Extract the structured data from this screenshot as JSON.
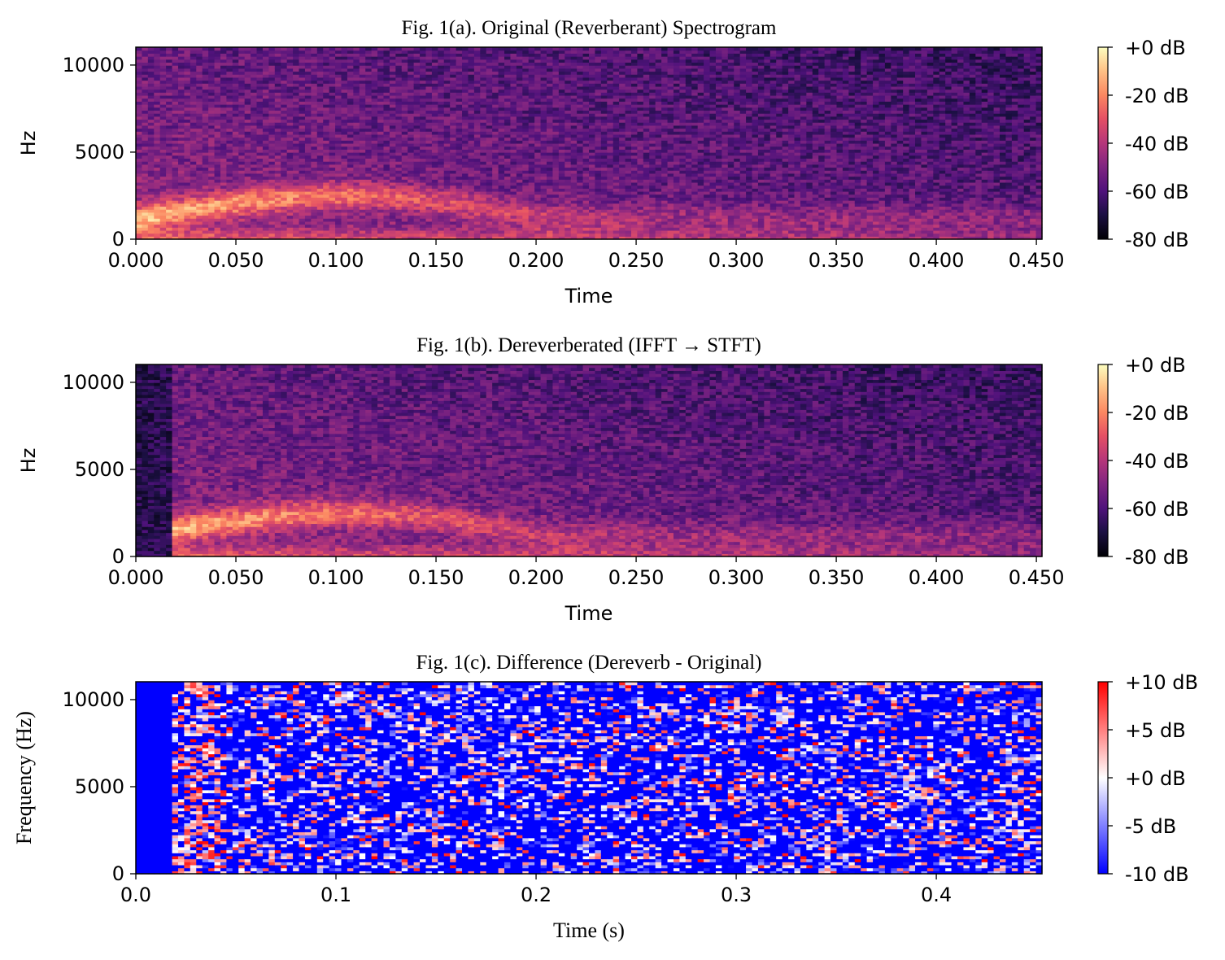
{
  "chart_data": [
    {
      "type": "heatmap",
      "id": "a",
      "title": "Fig. 1(a). Original (Reverberant) Spectrogram",
      "xlabel": "Time",
      "ylabel": "Hz",
      "xlim": [
        0,
        0.4528
      ],
      "ylim": [
        0,
        11025
      ],
      "x_ticks": [
        0,
        0.05,
        0.1,
        0.15,
        0.2,
        0.25,
        0.3,
        0.35,
        0.4,
        0.45
      ],
      "x_tick_labels": [
        "0.000",
        "0.050",
        "0.100",
        "0.150",
        "0.200",
        "0.250",
        "0.300",
        "0.350",
        "0.400",
        "0.450"
      ],
      "y_ticks": [
        0,
        5000,
        10000
      ],
      "y_tick_labels": [
        "0",
        "5000",
        "10000"
      ],
      "colormap": "magma",
      "colorbar": {
        "range": [
          -80,
          0
        ],
        "ticks": [
          0,
          -20,
          -40,
          -60,
          -80
        ],
        "labels": [
          "+0 dB",
          "-20 dB",
          "-40 dB",
          "-60 dB",
          "-80 dB"
        ]
      },
      "grid": false
    },
    {
      "type": "heatmap",
      "id": "b",
      "title": "Fig. 1(b). Dereverberated (IFFT → STFT)",
      "xlabel": "Time",
      "ylabel": "Hz",
      "xlim": [
        0,
        0.4528
      ],
      "ylim": [
        0,
        11025
      ],
      "x_ticks": [
        0,
        0.05,
        0.1,
        0.15,
        0.2,
        0.25,
        0.3,
        0.35,
        0.4,
        0.45
      ],
      "x_tick_labels": [
        "0.000",
        "0.050",
        "0.100",
        "0.150",
        "0.200",
        "0.250",
        "0.300",
        "0.350",
        "0.400",
        "0.450"
      ],
      "y_ticks": [
        0,
        5000,
        10000
      ],
      "y_tick_labels": [
        "0",
        "5000",
        "10000"
      ],
      "colormap": "magma",
      "colorbar": {
        "range": [
          -80,
          0
        ],
        "ticks": [
          0,
          -20,
          -40,
          -60,
          -80
        ],
        "labels": [
          "+0 dB",
          "-20 dB",
          "-40 dB",
          "-60 dB",
          "-80 dB"
        ]
      },
      "grid": false
    },
    {
      "type": "heatmap",
      "id": "c",
      "title": "Fig. 1(c). Difference (Dereverb - Original)",
      "xlabel": "Time (s)",
      "ylabel": "Frequency (Hz)",
      "xlim": [
        0,
        0.4528
      ],
      "ylim": [
        0,
        11025
      ],
      "x_ticks": [
        0,
        0.1,
        0.2,
        0.3,
        0.4
      ],
      "x_tick_labels": [
        "0.0",
        "0.1",
        "0.2",
        "0.3",
        "0.4"
      ],
      "y_ticks": [
        0,
        5000,
        10000
      ],
      "y_tick_labels": [
        "0",
        "5000",
        "10000"
      ],
      "colormap": "bwr",
      "colorbar": {
        "range": [
          -10,
          10
        ],
        "ticks": [
          10,
          5,
          0,
          -5,
          -10
        ],
        "labels": [
          "+10 dB",
          "+5 dB",
          "+0 dB",
          "-5 dB",
          "-10 dB"
        ]
      },
      "grid": false
    }
  ]
}
